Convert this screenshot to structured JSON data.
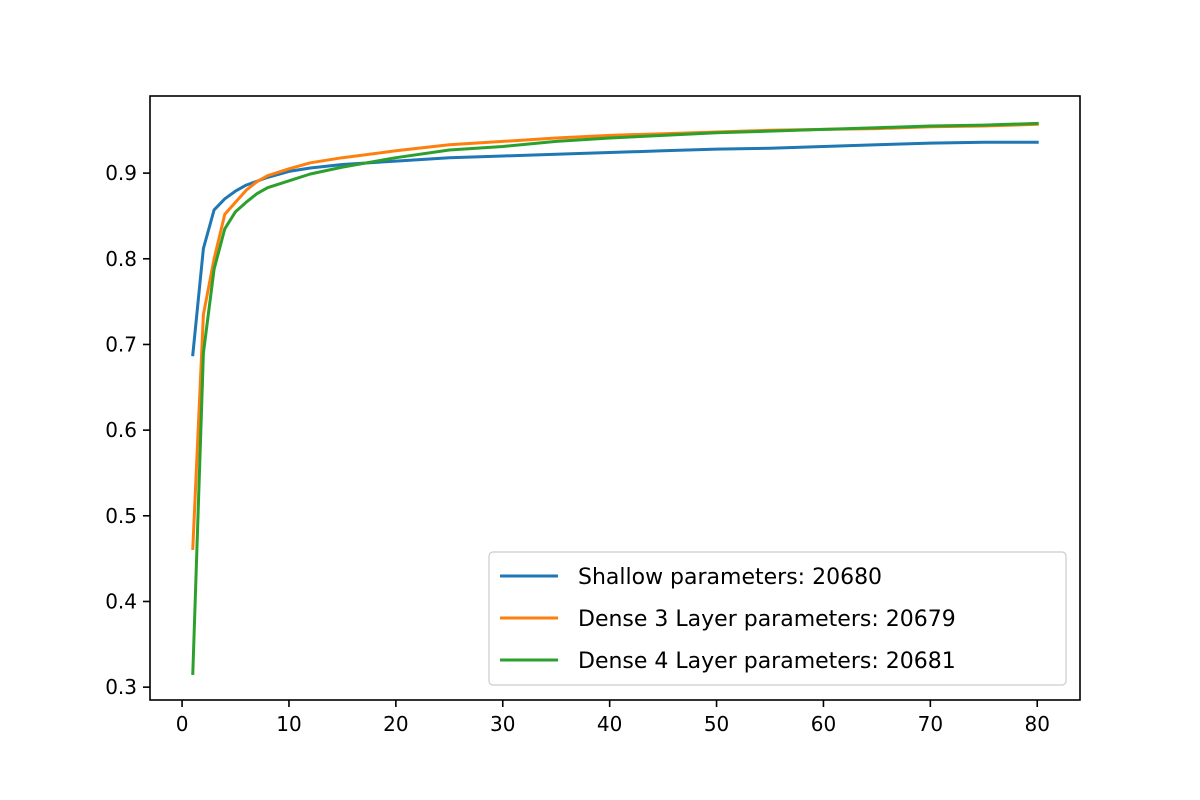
{
  "chart_data": {
    "type": "line",
    "title": "",
    "xlabel": "",
    "ylabel": "",
    "xlim": [
      -3,
      84
    ],
    "ylim": [
      0.285,
      0.99
    ],
    "x_ticks": [
      0,
      10,
      20,
      30,
      40,
      50,
      60,
      70,
      80
    ],
    "y_ticks": [
      0.3,
      0.4,
      0.5,
      0.6,
      0.7,
      0.8,
      0.9
    ],
    "x_tick_labels": [
      "0",
      "10",
      "20",
      "30",
      "40",
      "50",
      "60",
      "70",
      "80"
    ],
    "y_tick_labels": [
      "0.3",
      "0.4",
      "0.5",
      "0.6",
      "0.7",
      "0.8",
      "0.9"
    ],
    "legend_position": "lower-right",
    "series": [
      {
        "name": "Shallow parameters: 20680",
        "color": "#1f77b4",
        "x": [
          1,
          2,
          3,
          4,
          5,
          6,
          8,
          10,
          12,
          15,
          20,
          25,
          30,
          35,
          40,
          45,
          50,
          55,
          60,
          65,
          70,
          75,
          80
        ],
        "values": [
          0.688,
          0.812,
          0.857,
          0.87,
          0.879,
          0.886,
          0.895,
          0.902,
          0.906,
          0.91,
          0.914,
          0.918,
          0.92,
          0.922,
          0.924,
          0.926,
          0.928,
          0.929,
          0.931,
          0.933,
          0.935,
          0.936,
          0.936
        ]
      },
      {
        "name": "Dense 3 Layer parameters: 20679",
        "color": "#ff7f0e",
        "x": [
          1,
          2,
          3,
          4,
          5,
          6,
          7,
          8,
          10,
          12,
          15,
          20,
          25,
          30,
          35,
          40,
          45,
          50,
          55,
          60,
          65,
          70,
          75,
          80
        ],
        "values": [
          0.462,
          0.735,
          0.8,
          0.852,
          0.866,
          0.88,
          0.89,
          0.897,
          0.905,
          0.912,
          0.918,
          0.926,
          0.933,
          0.937,
          0.941,
          0.944,
          0.946,
          0.948,
          0.95,
          0.951,
          0.952,
          0.954,
          0.955,
          0.957
        ]
      },
      {
        "name": "Dense 4 Layer parameters: 20681",
        "color": "#2ca02c",
        "x": [
          1,
          2,
          3,
          4,
          5,
          6,
          7,
          8,
          10,
          12,
          15,
          20,
          25,
          30,
          35,
          40,
          45,
          50,
          55,
          60,
          65,
          70,
          75,
          80
        ],
        "values": [
          0.316,
          0.69,
          0.788,
          0.835,
          0.855,
          0.866,
          0.876,
          0.883,
          0.891,
          0.899,
          0.907,
          0.918,
          0.927,
          0.931,
          0.937,
          0.941,
          0.944,
          0.947,
          0.949,
          0.951,
          0.953,
          0.955,
          0.956,
          0.958
        ]
      }
    ]
  }
}
